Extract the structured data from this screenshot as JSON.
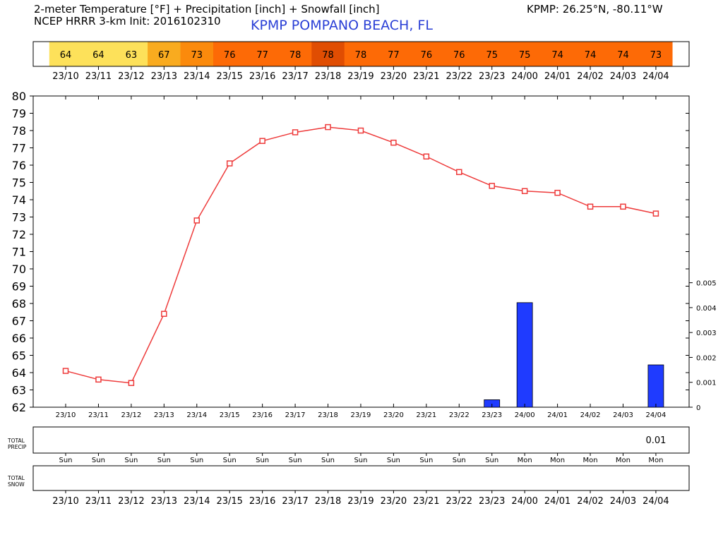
{
  "header": {
    "title_line1": "2-meter Temperature [°F] + Precipitation [inch] + Snowfall [inch]",
    "title_line2": "NCEP HRRR 3-km Init: 2016102310",
    "station_name": "KPMP POMPANO BEACH, FL",
    "coords": "KPMP: 26.25°N, -80.11°W"
  },
  "chart_data": {
    "type": "line",
    "times": [
      "23/10",
      "23/11",
      "23/12",
      "23/13",
      "23/14",
      "23/15",
      "23/16",
      "23/17",
      "23/18",
      "23/19",
      "23/20",
      "23/21",
      "23/22",
      "23/23",
      "24/00",
      "24/01",
      "24/02",
      "24/03",
      "24/04"
    ],
    "days": [
      "Sun",
      "Sun",
      "Sun",
      "Sun",
      "Sun",
      "Sun",
      "Sun",
      "Sun",
      "Sun",
      "Sun",
      "Sun",
      "Sun",
      "Sun",
      "Sun",
      "Mon",
      "Mon",
      "Mon",
      "Mon",
      "Mon"
    ],
    "temperature_strip": {
      "values": [
        64,
        64,
        63,
        67,
        73,
        76,
        77,
        78,
        78,
        78,
        77,
        76,
        76,
        75,
        75,
        74,
        74,
        74,
        73
      ],
      "colors": [
        "#fde15a",
        "#fde15a",
        "#fde15a",
        "#f9ab1f",
        "#fb8a0c",
        "#fd6a06",
        "#fd6a06",
        "#fd6a06",
        "#e04d02",
        "#fd6a06",
        "#fd6a06",
        "#fd6a06",
        "#fd6a06",
        "#fd6a06",
        "#fd6a06",
        "#fd6a06",
        "#fd6a06",
        "#fd6a06",
        "#fd6a06"
      ]
    },
    "temperature": {
      "values": [
        64.1,
        63.6,
        63.4,
        67.4,
        72.8,
        76.1,
        77.4,
        77.9,
        78.2,
        78.0,
        77.3,
        76.5,
        75.6,
        74.8,
        74.5,
        74.4,
        73.6,
        73.6,
        73.2
      ],
      "ylim": [
        62,
        80
      ],
      "ticks": [
        62,
        63,
        64,
        65,
        66,
        67,
        68,
        69,
        70,
        71,
        72,
        73,
        74,
        75,
        76,
        77,
        78,
        79,
        80
      ],
      "color": "#ee3b3b"
    },
    "precipitation": {
      "values": [
        0,
        0,
        0,
        0,
        0,
        0,
        0,
        0,
        0,
        0,
        0,
        0,
        0,
        0.0003,
        0.0042,
        0,
        0,
        0,
        0.0017
      ],
      "ylim": [
        0,
        0.0125
      ],
      "ticks": [
        "0",
        "0.001",
        "0.002",
        "0.003",
        "0.004",
        "0.005"
      ],
      "color": "#1f3bff"
    },
    "total_precip": {
      "label_line1": "TOTAL",
      "label_line2": "PRECIP",
      "value": "0.01",
      "value_index": 18
    },
    "total_snow": {
      "label_line1": "TOTAL",
      "label_line2": "SNOW"
    }
  }
}
